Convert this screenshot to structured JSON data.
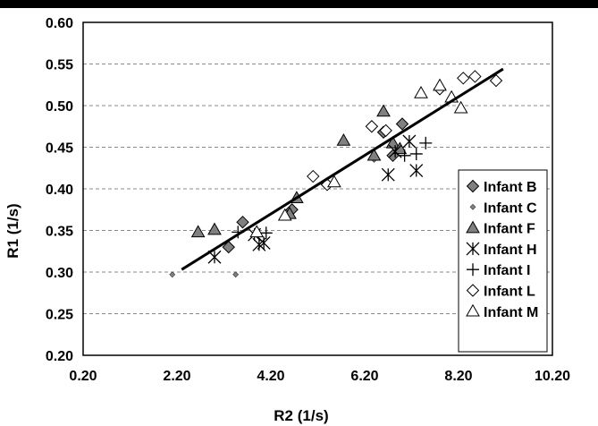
{
  "chart_data": {
    "type": "scatter",
    "title": "",
    "xlabel": "R2 (1/s)",
    "ylabel": "R1 (1/s)",
    "xlim": [
      0.2,
      10.2
    ],
    "ylim": [
      0.2,
      0.6
    ],
    "xticks": [
      "0.20",
      "2.20",
      "4.20",
      "6.20",
      "8.20",
      "10.20"
    ],
    "yticks": [
      "0.20",
      "0.25",
      "0.30",
      "0.35",
      "0.40",
      "0.45",
      "0.50",
      "0.55",
      "0.60"
    ],
    "grid": "horizontal dashed",
    "legend_position": "right",
    "series": [
      {
        "name": "Infant B",
        "marker": "diamond",
        "fill": "#808080",
        "size": "large",
        "points": [
          [
            3.3,
            0.33
          ],
          [
            3.6,
            0.36
          ],
          [
            4.65,
            0.375
          ],
          [
            6.6,
            0.468
          ],
          [
            6.8,
            0.44
          ],
          [
            7.0,
            0.478
          ]
        ]
      },
      {
        "name": "Infant C",
        "marker": "diamond",
        "fill": "#808080",
        "size": "small",
        "points": [
          [
            2.1,
            0.297
          ],
          [
            3.45,
            0.297
          ],
          [
            6.4,
            0.435
          ]
        ]
      },
      {
        "name": "Infant F",
        "marker": "triangle",
        "fill": "#808080",
        "size": "large",
        "points": [
          [
            2.65,
            0.348
          ],
          [
            3.0,
            0.351
          ],
          [
            4.6,
            0.37
          ],
          [
            4.75,
            0.389
          ],
          [
            5.75,
            0.458
          ],
          [
            6.4,
            0.44
          ],
          [
            6.6,
            0.493
          ],
          [
            6.8,
            0.455
          ],
          [
            6.95,
            0.448
          ]
        ]
      },
      {
        "name": "Infant H",
        "marker": "asterisk",
        "fill": "none",
        "size": "large",
        "points": [
          [
            3.0,
            0.318
          ],
          [
            3.85,
            0.345
          ],
          [
            3.95,
            0.333
          ],
          [
            4.05,
            0.335
          ],
          [
            6.7,
            0.417
          ],
          [
            6.85,
            0.445
          ],
          [
            7.15,
            0.457
          ],
          [
            7.3,
            0.422
          ]
        ]
      },
      {
        "name": "Infant I",
        "marker": "plus",
        "fill": "none",
        "size": "large",
        "points": [
          [
            3.5,
            0.348
          ],
          [
            4.1,
            0.347
          ],
          [
            7.05,
            0.44
          ],
          [
            7.3,
            0.442
          ],
          [
            7.5,
            0.455
          ]
        ]
      },
      {
        "name": "Infant L",
        "marker": "diamond",
        "fill": "#ffffff",
        "size": "large",
        "points": [
          [
            5.1,
            0.415
          ],
          [
            5.4,
            0.405
          ],
          [
            6.35,
            0.475
          ],
          [
            6.65,
            0.47
          ],
          [
            7.8,
            0.52
          ],
          [
            8.3,
            0.533
          ],
          [
            8.55,
            0.535
          ],
          [
            9.0,
            0.53
          ]
        ]
      },
      {
        "name": "Infant M",
        "marker": "triangle",
        "fill": "#ffffff",
        "size": "large",
        "points": [
          [
            3.9,
            0.348
          ],
          [
            4.5,
            0.368
          ],
          [
            5.55,
            0.408
          ],
          [
            7.4,
            0.515
          ],
          [
            7.8,
            0.524
          ],
          [
            8.05,
            0.51
          ],
          [
            8.25,
            0.497
          ]
        ]
      }
    ],
    "trendline": {
      "x": [
        2.3,
        9.15
      ],
      "y": [
        0.303,
        0.544
      ],
      "color": "#000000"
    }
  }
}
